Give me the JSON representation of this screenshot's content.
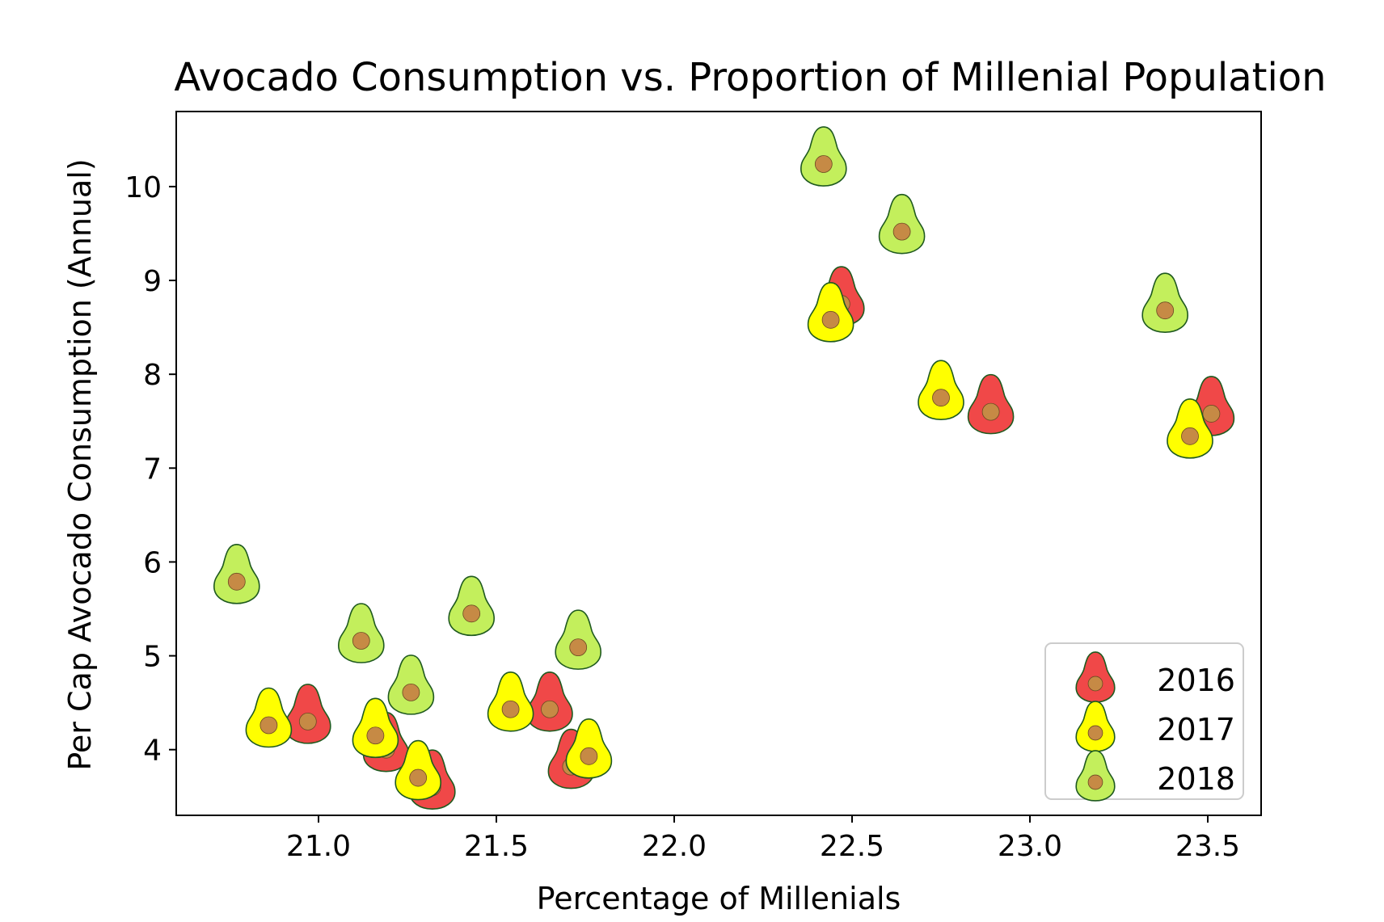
{
  "chart_data": {
    "type": "scatter",
    "title": "Avocado Consumption vs. Proportion of Millenial Population",
    "xlabel": "Percentage of Millenials",
    "ylabel": "Per Cap Avocado Consumption (Annual)",
    "xlim": [
      20.6,
      23.65
    ],
    "ylim": [
      3.3,
      10.8
    ],
    "xticks": [
      21.0,
      21.5,
      22.0,
      22.5,
      23.0,
      23.5
    ],
    "xtick_labels": [
      "21.0",
      "21.5",
      "22.0",
      "22.5",
      "23.0",
      "23.5"
    ],
    "yticks": [
      4,
      5,
      6,
      7,
      8,
      9,
      10
    ],
    "ytick_labels": [
      "4",
      "5",
      "6",
      "7",
      "8",
      "9",
      "10"
    ],
    "grid": false,
    "legend_position": "bottom-right",
    "marker": "avocado-icon",
    "pit_color": "#c68a45",
    "outline_color": "#1f5a1f",
    "series": [
      {
        "name": "2016",
        "color": "#f04848",
        "points": [
          [
            20.97,
            4.3
          ],
          [
            21.19,
            4.0
          ],
          [
            21.32,
            3.6
          ],
          [
            21.65,
            4.43
          ],
          [
            21.71,
            3.82
          ],
          [
            22.47,
            8.75
          ],
          [
            22.89,
            7.6
          ],
          [
            23.51,
            7.58
          ]
        ]
      },
      {
        "name": "2017",
        "color": "#ffff00",
        "points": [
          [
            20.86,
            4.26
          ],
          [
            21.16,
            4.15
          ],
          [
            21.28,
            3.7
          ],
          [
            21.54,
            4.43
          ],
          [
            21.76,
            3.93
          ],
          [
            22.44,
            8.58
          ],
          [
            22.75,
            7.75
          ],
          [
            23.45,
            7.34
          ]
        ]
      },
      {
        "name": "2018",
        "color": "#c3ef5c",
        "points": [
          [
            20.77,
            5.79
          ],
          [
            21.12,
            5.16
          ],
          [
            21.26,
            4.61
          ],
          [
            21.43,
            5.45
          ],
          [
            21.73,
            5.09
          ],
          [
            22.42,
            10.24
          ],
          [
            22.64,
            9.52
          ],
          [
            23.38,
            8.68
          ]
        ]
      }
    ]
  }
}
